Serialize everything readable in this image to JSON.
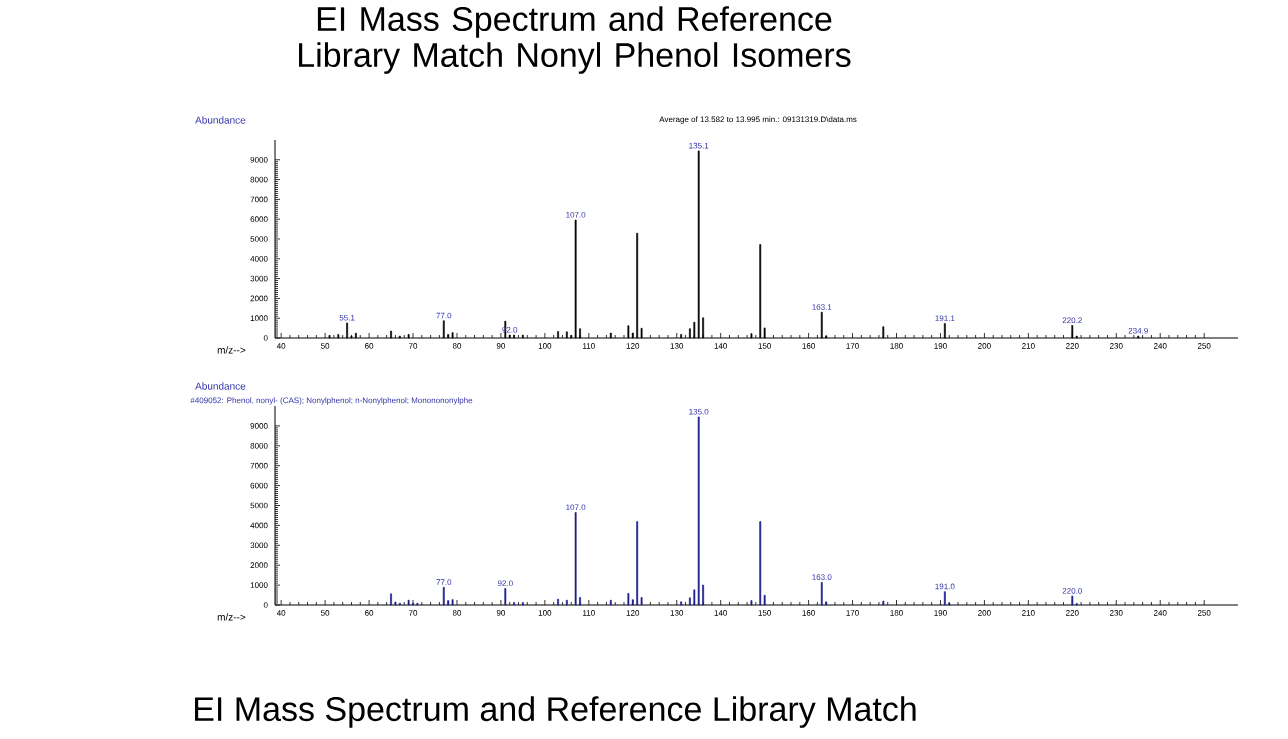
{
  "chart_data": [
    {
      "type": "bar",
      "title": "EI Mass Spectrum and Reference Library Match Nonyl Phenol Isomers",
      "subtitle": "Average of 13.582 to 13.995 min.: 09131319.D\\data.ms",
      "xlabel": "m/z-->",
      "ylabel": "Abundance",
      "color": "#000000",
      "x": [
        51,
        53,
        55,
        56,
        57,
        65,
        67,
        69,
        77,
        78,
        79,
        91,
        92,
        93,
        95,
        103,
        105,
        106,
        107,
        108,
        115,
        119,
        120,
        121,
        122,
        131,
        133,
        134,
        135,
        136,
        147,
        149,
        150,
        163,
        164,
        177,
        191,
        220,
        221,
        235
      ],
      "values": [
        130,
        180,
        760,
        100,
        240,
        350,
        100,
        180,
        870,
        180,
        270,
        850,
        150,
        150,
        150,
        330,
        310,
        130,
        5960,
        470,
        250,
        620,
        250,
        5290,
        490,
        180,
        470,
        800,
        9450,
        1020,
        220,
        4720,
        510,
        1300,
        100,
        570,
        730,
        630,
        100,
        100
      ],
      "xlim": [
        38.6,
        257.7
      ],
      "ylim": [
        0,
        10000
      ],
      "xticks": [
        40,
        50,
        60,
        70,
        80,
        90,
        100,
        110,
        120,
        130,
        140,
        150,
        160,
        170,
        180,
        190,
        200,
        210,
        220,
        230,
        240,
        250
      ],
      "yticks": [
        0,
        1000,
        2000,
        3000,
        4000,
        5000,
        6000,
        7000,
        8000,
        9000
      ],
      "annotations": [
        {
          "text": "55.1",
          "x": 55,
          "y": 760
        },
        {
          "text": "77.0",
          "x": 77,
          "y": 870
        },
        {
          "text": "92.0",
          "x": 92,
          "y": 150
        },
        {
          "text": "107.0",
          "x": 107,
          "y": 5960
        },
        {
          "text": "135.1",
          "x": 135,
          "y": 9450
        },
        {
          "text": "163.1",
          "x": 163,
          "y": 1300
        },
        {
          "text": "191.1",
          "x": 191,
          "y": 730
        },
        {
          "text": "220.2",
          "x": 220,
          "y": 630
        },
        {
          "text": "234.9",
          "x": 235,
          "y": 100
        }
      ]
    },
    {
      "type": "bar",
      "title": "#409052: Phenol, nonyl- (CAS); Nonylphenol; n-Nonylphenol; Mononononylphe",
      "xlabel": "m/z-->",
      "ylabel": "Abundance",
      "color": "#1a1a8c",
      "x": [
        65,
        66,
        67,
        69,
        70,
        71,
        77,
        78,
        79,
        91,
        93,
        95,
        103,
        105,
        107,
        108,
        115,
        119,
        120,
        121,
        122,
        131,
        133,
        134,
        135,
        136,
        147,
        149,
        150,
        163,
        164,
        177,
        191,
        192,
        220,
        221
      ],
      "values": [
        560,
        150,
        90,
        240,
        90,
        90,
        890,
        220,
        270,
        830,
        130,
        130,
        290,
        240,
        4650,
        380,
        240,
        580,
        270,
        4190,
        380,
        160,
        360,
        760,
        9450,
        1000,
        220,
        4190,
        490,
        1140,
        160,
        200,
        670,
        100,
        450,
        80
      ],
      "xlim": [
        38.6,
        257.7
      ],
      "ylim": [
        0,
        10000
      ],
      "xticks": [
        40,
        50,
        60,
        70,
        80,
        90,
        100,
        110,
        120,
        130,
        140,
        150,
        160,
        170,
        180,
        190,
        200,
        210,
        220,
        230,
        240,
        250
      ],
      "yticks": [
        0,
        1000,
        2000,
        3000,
        4000,
        5000,
        6000,
        7000,
        8000,
        9000
      ],
      "annotations": [
        {
          "text": "77.0",
          "x": 77,
          "y": 890
        },
        {
          "text": "92.0",
          "x": 91,
          "y": 830
        },
        {
          "text": "107.0",
          "x": 107,
          "y": 4650
        },
        {
          "text": "135.0",
          "x": 135,
          "y": 9450
        },
        {
          "text": "163.0",
          "x": 163,
          "y": 1140
        },
        {
          "text": "191.0",
          "x": 191,
          "y": 670
        },
        {
          "text": "220.0",
          "x": 220,
          "y": 450
        },
        "EI Mass Spectrum and Reference Library Match"
      ]
    }
  ]
}
